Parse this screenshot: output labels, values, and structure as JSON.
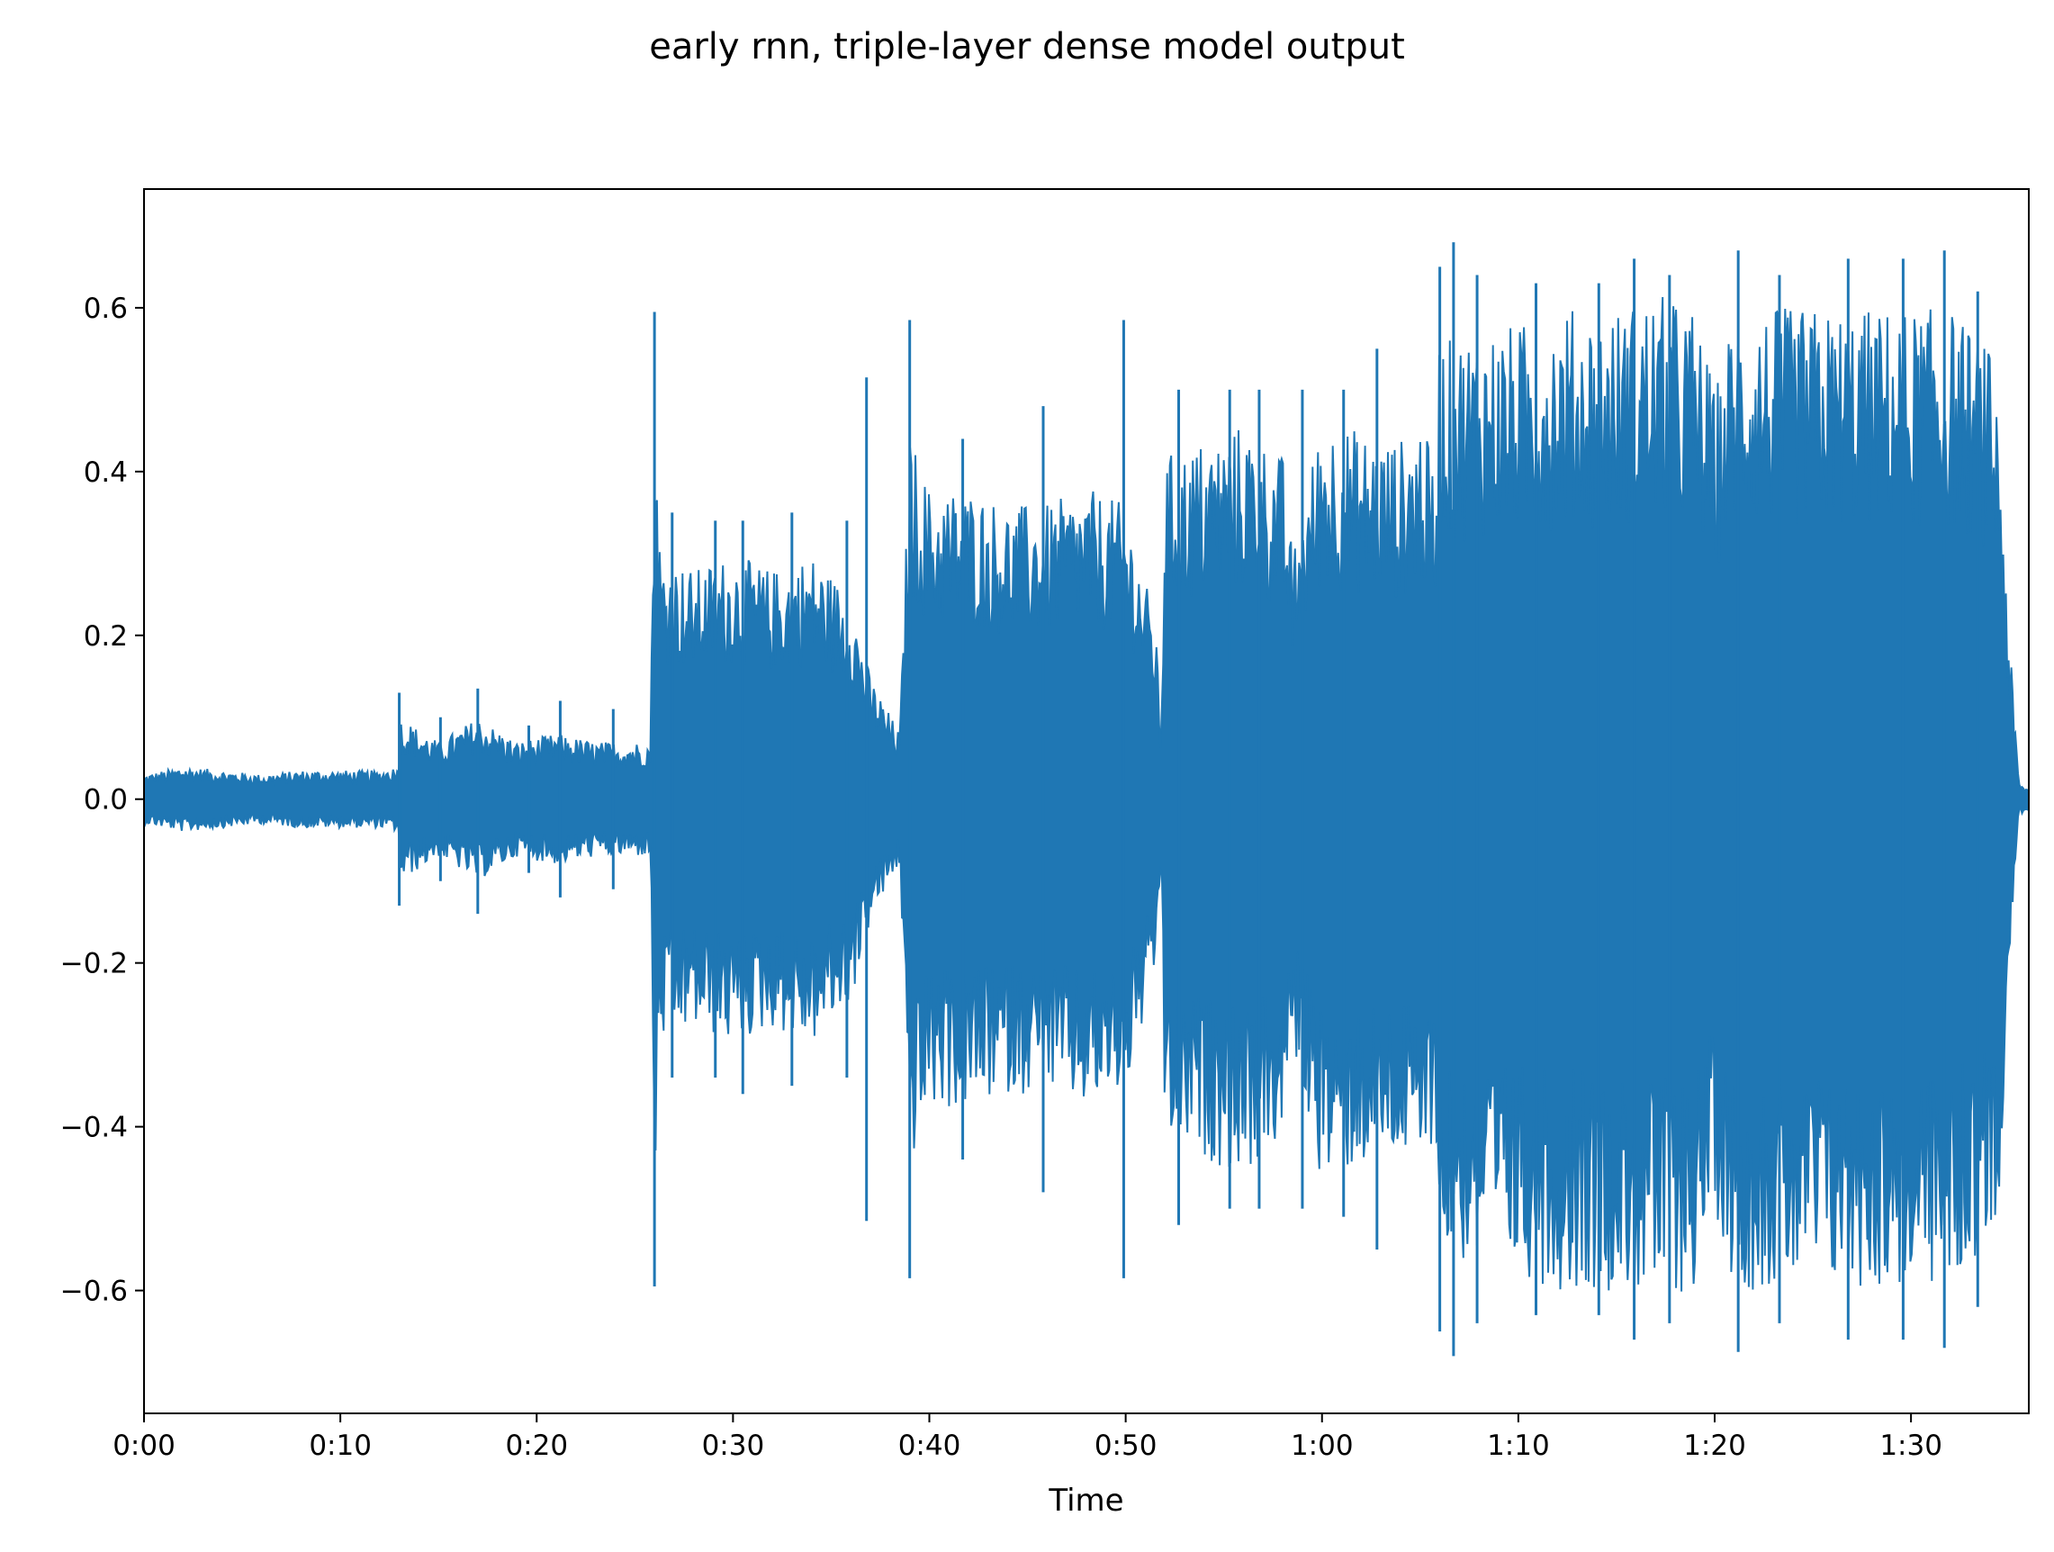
{
  "chart_data": {
    "type": "line",
    "title": "early rnn, triple-layer dense model output",
    "xlabel": "Time",
    "ylabel": "",
    "xlim": [
      0,
      96
    ],
    "ylim": [
      -0.75,
      0.745
    ],
    "grid": false,
    "x_ticks": [
      {
        "value": 0,
        "label": "0:00"
      },
      {
        "value": 10,
        "label": "0:10"
      },
      {
        "value": 20,
        "label": "0:20"
      },
      {
        "value": 30,
        "label": "0:30"
      },
      {
        "value": 40,
        "label": "0:40"
      },
      {
        "value": 50,
        "label": "0:50"
      },
      {
        "value": 60,
        "label": "1:00"
      },
      {
        "value": 70,
        "label": "1:10"
      },
      {
        "value": 80,
        "label": "1:20"
      },
      {
        "value": 90,
        "label": "1:30"
      }
    ],
    "y_ticks": [
      {
        "value": 0.6,
        "label": "0.6"
      },
      {
        "value": 0.4,
        "label": "0.4"
      },
      {
        "value": 0.2,
        "label": "0.2"
      },
      {
        "value": 0.0,
        "label": "0.0"
      },
      {
        "value": -0.2,
        "label": "−0.2"
      },
      {
        "value": -0.4,
        "label": "−0.4"
      },
      {
        "value": -0.6,
        "label": "−0.6"
      }
    ],
    "series": [
      {
        "color": "#1f77b4",
        "envelope": {
          "time": [
            0,
            2,
            4,
            6,
            8,
            10,
            12,
            12.9,
            13.1,
            15,
            17,
            19,
            21,
            23,
            25,
            25.8,
            26.0,
            26.3,
            28,
            30,
            32,
            34,
            36,
            37,
            38.5,
            39.0,
            40,
            42,
            44,
            46,
            48,
            50,
            51.5,
            51.8,
            52.0,
            54,
            56,
            58,
            58.5,
            60,
            62,
            64,
            65,
            65.8,
            66.0,
            66.3,
            68,
            70,
            72,
            74,
            75,
            77,
            79,
            80,
            81,
            82,
            84,
            86,
            88,
            90,
            92,
            94,
            94.5,
            95.0,
            95.5,
            96
          ],
          "upper": [
            0.03,
            0.04,
            0.035,
            0.03,
            0.035,
            0.035,
            0.035,
            0.04,
            0.1,
            0.07,
            0.1,
            0.07,
            0.08,
            0.07,
            0.07,
            0.07,
            0.5,
            0.3,
            0.28,
            0.3,
            0.28,
            0.3,
            0.25,
            0.15,
            0.08,
            0.45,
            0.38,
            0.38,
            0.36,
            0.36,
            0.38,
            0.36,
            0.22,
            0.08,
            0.42,
            0.44,
            0.46,
            0.42,
            0.3,
            0.47,
            0.45,
            0.44,
            0.47,
            0.4,
            0.6,
            0.56,
            0.58,
            0.58,
            0.6,
            0.6,
            0.6,
            0.62,
            0.6,
            0.5,
            0.6,
            0.6,
            0.6,
            0.6,
            0.6,
            0.6,
            0.6,
            0.55,
            0.48,
            0.2,
            0.02,
            0.012
          ],
          "lower": [
            -0.03,
            -0.04,
            -0.035,
            -0.03,
            -0.035,
            -0.035,
            -0.035,
            -0.04,
            -0.1,
            -0.07,
            -0.1,
            -0.07,
            -0.08,
            -0.07,
            -0.07,
            -0.07,
            -0.5,
            -0.3,
            -0.28,
            -0.3,
            -0.28,
            -0.3,
            -0.25,
            -0.15,
            -0.08,
            -0.45,
            -0.38,
            -0.38,
            -0.36,
            -0.36,
            -0.38,
            -0.36,
            -0.22,
            -0.08,
            -0.42,
            -0.44,
            -0.46,
            -0.42,
            -0.3,
            -0.47,
            -0.45,
            -0.44,
            -0.47,
            -0.4,
            -0.6,
            -0.56,
            -0.58,
            -0.58,
            -0.6,
            -0.6,
            -0.6,
            -0.62,
            -0.6,
            -0.5,
            -0.6,
            -0.6,
            -0.6,
            -0.6,
            -0.6,
            -0.6,
            -0.6,
            -0.55,
            -0.48,
            -0.2,
            -0.02,
            -0.012
          ]
        },
        "peaks": [
          {
            "t": 13.0,
            "max": 0.13,
            "min": -0.13
          },
          {
            "t": 15.1,
            "max": 0.1,
            "min": -0.1
          },
          {
            "t": 17.0,
            "max": 0.135,
            "min": -0.14
          },
          {
            "t": 19.6,
            "max": 0.09,
            "min": -0.09
          },
          {
            "t": 21.2,
            "max": 0.12,
            "min": -0.12
          },
          {
            "t": 23.9,
            "max": 0.11,
            "min": -0.11
          },
          {
            "t": 26.0,
            "max": 0.595,
            "min": -0.595
          },
          {
            "t": 26.9,
            "max": 0.35,
            "min": -0.34
          },
          {
            "t": 29.1,
            "max": 0.34,
            "min": -0.34
          },
          {
            "t": 30.5,
            "max": 0.34,
            "min": -0.36
          },
          {
            "t": 33.0,
            "max": 0.35,
            "min": -0.35
          },
          {
            "t": 35.8,
            "max": 0.34,
            "min": -0.34
          },
          {
            "t": 36.8,
            "max": 0.515,
            "min": -0.515
          },
          {
            "t": 39.0,
            "max": 0.585,
            "min": -0.585
          },
          {
            "t": 41.7,
            "max": 0.44,
            "min": -0.44
          },
          {
            "t": 45.8,
            "max": 0.48,
            "min": -0.48
          },
          {
            "t": 49.9,
            "max": 0.585,
            "min": -0.585
          },
          {
            "t": 52.7,
            "max": 0.5,
            "min": -0.52
          },
          {
            "t": 55.3,
            "max": 0.5,
            "min": -0.5
          },
          {
            "t": 56.8,
            "max": 0.5,
            "min": -0.5
          },
          {
            "t": 59.0,
            "max": 0.5,
            "min": -0.5
          },
          {
            "t": 61.1,
            "max": 0.5,
            "min": -0.51
          },
          {
            "t": 62.8,
            "max": 0.55,
            "min": -0.55
          },
          {
            "t": 66.0,
            "max": 0.65,
            "min": -0.65
          },
          {
            "t": 66.7,
            "max": 0.68,
            "min": -0.68
          },
          {
            "t": 67.9,
            "max": 0.64,
            "min": -0.64
          },
          {
            "t": 70.9,
            "max": 0.63,
            "min": -0.63
          },
          {
            "t": 74.1,
            "max": 0.63,
            "min": -0.63
          },
          {
            "t": 75.9,
            "max": 0.66,
            "min": -0.66
          },
          {
            "t": 77.7,
            "max": 0.64,
            "min": -0.64
          },
          {
            "t": 81.2,
            "max": 0.67,
            "min": -0.675
          },
          {
            "t": 83.3,
            "max": 0.64,
            "min": -0.64
          },
          {
            "t": 86.8,
            "max": 0.66,
            "min": -0.66
          },
          {
            "t": 89.6,
            "max": 0.66,
            "min": -0.66
          },
          {
            "t": 91.7,
            "max": 0.67,
            "min": -0.67
          },
          {
            "t": 93.4,
            "max": 0.62,
            "min": -0.62
          }
        ]
      }
    ]
  }
}
